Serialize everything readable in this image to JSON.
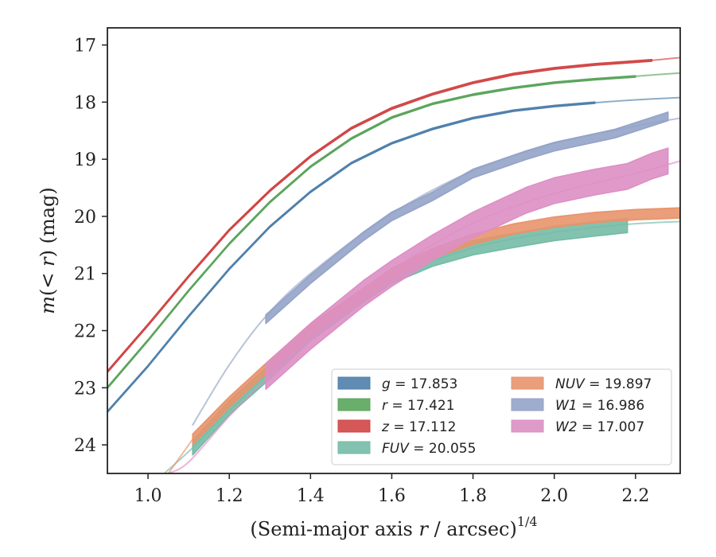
{
  "chart_data": {
    "type": "line",
    "xlabel": "(Semi-major axis r / arcsec)^{1/4}",
    "ylabel": "m(< r) (mag)",
    "xlim": [
      0.9,
      2.31
    ],
    "ylim": [
      24.5,
      16.7
    ],
    "y_inverted": true,
    "xticks": [
      "1.0",
      "1.2",
      "1.4",
      "1.6",
      "1.8",
      "2.0",
      "2.2"
    ],
    "yticks": [
      "17",
      "18",
      "19",
      "20",
      "21",
      "22",
      "23",
      "24"
    ],
    "grid": false,
    "legend_position": "lower-right",
    "series": [
      {
        "name": "g = 17.853",
        "color": "#4f80ab",
        "band_width": 0.025,
        "x": [
          0.9,
          1.0,
          1.1,
          1.2,
          1.3,
          1.4,
          1.5,
          1.6,
          1.7,
          1.8,
          1.9,
          2.0,
          2.1
        ],
        "y": [
          23.42,
          22.62,
          21.75,
          20.92,
          20.18,
          19.57,
          19.07,
          18.72,
          18.47,
          18.28,
          18.15,
          18.07,
          18.01
        ],
        "model_x": [
          2.1,
          2.2,
          2.31
        ],
        "model_y": [
          18.01,
          17.96,
          17.92
        ]
      },
      {
        "name": "r = 17.421",
        "color": "#5aa55c",
        "band_width": 0.025,
        "x": [
          0.9,
          1.0,
          1.1,
          1.2,
          1.3,
          1.4,
          1.5,
          1.6,
          1.7,
          1.8,
          1.9,
          2.0,
          2.1,
          2.2,
          2.18
        ],
        "y": [
          23.0,
          22.17,
          21.3,
          20.48,
          19.75,
          19.13,
          18.64,
          18.27,
          18.03,
          17.87,
          17.75,
          17.66,
          17.6,
          17.55,
          17.56
        ],
        "model_x": [
          2.18,
          2.25,
          2.31
        ],
        "model_y": [
          17.56,
          17.52,
          17.49
        ]
      },
      {
        "name": "z = 17.112",
        "color": "#d14545",
        "band_width": 0.03,
        "x": [
          0.9,
          1.0,
          1.1,
          1.2,
          1.3,
          1.4,
          1.5,
          1.6,
          1.7,
          1.8,
          1.9,
          2.0,
          2.1,
          2.2,
          2.24
        ],
        "y": [
          22.72,
          21.9,
          21.05,
          20.24,
          19.55,
          18.95,
          18.46,
          18.11,
          17.86,
          17.66,
          17.51,
          17.41,
          17.34,
          17.29,
          17.27
        ],
        "model_x": [
          2.24,
          2.31
        ],
        "model_y": [
          17.27,
          17.22
        ]
      },
      {
        "name": "FUV = 20.055",
        "color": "#74bba6",
        "band_width": 0.25,
        "x": [
          1.11,
          1.2,
          1.3,
          1.4,
          1.53,
          1.6,
          1.7,
          1.8,
          1.9,
          2.0,
          2.1,
          2.18
        ],
        "y": [
          24.05,
          23.35,
          22.72,
          22.05,
          21.38,
          21.05,
          20.75,
          20.55,
          20.42,
          20.3,
          20.22,
          20.16
        ],
        "model_x": [
          1.04,
          1.11,
          1.2,
          1.4,
          1.6,
          1.8,
          2.0,
          2.18,
          2.31
        ],
        "model_y": [
          24.5,
          24.05,
          23.4,
          22.1,
          21.1,
          20.55,
          20.28,
          20.14,
          20.09
        ]
      },
      {
        "name": "NUV = 19.897",
        "color": "#e8936c",
        "band_width": 0.18,
        "x": [
          1.11,
          1.2,
          1.3,
          1.4,
          1.53,
          1.6,
          1.7,
          1.8,
          1.9,
          2.0,
          2.1,
          2.2,
          2.31
        ],
        "y": [
          23.9,
          23.25,
          22.6,
          21.98,
          21.35,
          21.0,
          20.65,
          20.4,
          20.22,
          20.1,
          20.02,
          19.97,
          19.94
        ],
        "model_x": [
          1.05,
          1.11
        ],
        "model_y": [
          24.5,
          23.9
        ]
      },
      {
        "name": "W1 = 16.986",
        "color": "#94a3c8",
        "band_width": 0.15,
        "x": [
          1.29,
          1.4,
          1.53,
          1.6,
          1.7,
          1.8,
          1.93,
          2.0,
          2.15,
          2.28
        ],
        "y": [
          21.8,
          21.1,
          20.35,
          20.0,
          19.65,
          19.25,
          18.93,
          18.78,
          18.55,
          18.25
        ],
        "model_x": [
          1.11,
          1.2,
          1.29,
          1.4,
          1.6,
          1.8,
          2.0,
          2.2,
          2.31
        ],
        "model_y": [
          23.65,
          22.6,
          21.75,
          21.0,
          19.95,
          19.2,
          18.72,
          18.42,
          18.28
        ]
      },
      {
        "name": "W2 = 17.007",
        "color": "#dd8fc4",
        "band_width": 0.45,
        "x": [
          1.29,
          1.4,
          1.53,
          1.6,
          1.7,
          1.8,
          1.93,
          2.0,
          2.1,
          2.18,
          2.24,
          2.28
        ],
        "y": [
          22.8,
          22.1,
          21.35,
          21.0,
          20.55,
          20.15,
          19.72,
          19.55,
          19.4,
          19.3,
          19.12,
          19.03
        ],
        "model_x": [
          1.05,
          1.1,
          1.2,
          1.29,
          1.4,
          1.6,
          1.8,
          2.0,
          2.2,
          2.31
        ],
        "model_y": [
          24.5,
          24.3,
          23.5,
          22.85,
          22.1,
          20.95,
          20.12,
          19.6,
          19.25,
          19.03
        ]
      }
    ]
  }
}
